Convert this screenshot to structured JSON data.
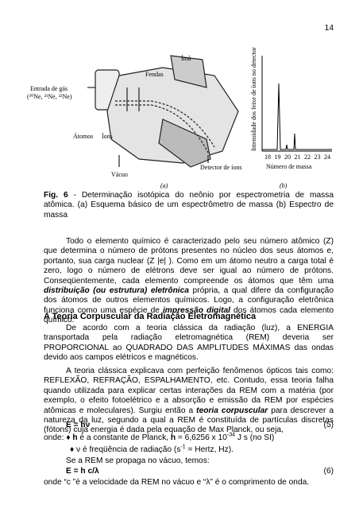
{
  "page_number": "14",
  "figure": {
    "diagram": {
      "gas_inlet": "Entrada de gás",
      "isotopes": "(²⁰Ne, ²¹Ne, ²²Ne)",
      "slits": "Fendas",
      "magnet": "Ímã",
      "atoms": "Átomos",
      "ions": "Íons",
      "detector": "Detector de íons",
      "vacuum": "Vácuo",
      "panel": "(a)"
    },
    "spectrum": {
      "y_label": "Intensidade dos feixe de íons no detector",
      "x_label": "Número de massa",
      "x_ticks": [
        "18",
        "19",
        "20",
        "21",
        "22",
        "23",
        "24"
      ],
      "panel": "(b)"
    },
    "caption": [
      "Fig. 6",
      " - Determinação isotópica do neônio por espectrometria de massa atômica. (a) Esquema básico de um espectrômetro de massa (b) Espectro de massa"
    ]
  },
  "body": {
    "paragraph_1": [
      "Todo o elemento químico é caracterizado pelo seu número atômico (Z) que determina o número de prótons presentes no núcleo dos seus átomos e, portanto, sua carga nuclear (Z |e| ). Como em um átomo neutro a carga total é zero, logo o número de elétrons deve ser igual ao número de prótons. Conseqüentemente, cada elemento compreende os átomos que têm uma ",
      "distribuição (ou estrutura) eletrônica",
      " própria, a qual difere da configuração dos átomos de outros elementos químicos. Logo, a configuração eletrônica funciona como uma espécie de ",
      "impressão digital",
      " dos átomos cada elemento químico."
    ],
    "heading": "A Teoria Corpuscular da Radiação Eletromagnética",
    "paragraph_2": "De acordo com a teoria clássica da radiação (luz), a ENERGIA transportada pela radiação eletromagnética (REM) deveria ser PROPORCIONAL ao QUADRADO DAS AMPLITUDES MÁXIMAS das ondas devido aos campos elétricos e magnéticos.",
    "paragraph_3": [
      "A teoria clássica explicava com perfeição fenômenos ópticos tais como: REFLEXÃO, REFRAÇÃO, ESPALHAMENTO, etc. Contudo, essa teoria falha quando utilizada para explicar certas interações da REM com a matéria (por exemplo, o efeito fotoelétrico e a absorção e emissão da REM por espécies atômicas e moleculares). Surgiu então a ",
      "teoria corpuscular",
      " para descrever a natureza da luz, segundo a qual a REM é constituída de partículas discretas (fótons) cuja energia é dada pela equação de Max Planck, ou seja,"
    ],
    "equation_5": {
      "formula": "E = hν",
      "number": "(5)"
    },
    "where_1": [
      "onde: ♦ ",
      "h",
      " é a constante de Planck, ",
      "h",
      " = 6,6256 x 10",
      "-34",
      " J s (no SI)"
    ],
    "where_2": [
      "♦ ν é freqüência de radiação (s",
      "-1",
      " = Hertz, Hz)."
    ],
    "vacuum_line": "Se a REM se propaga no vácuo, temos:",
    "equation_6": {
      "formula": "E = h c/λ",
      "number": "(6)"
    },
    "where_3": "onde “c ”é a velocidade da REM no vácuo e “λ” é o comprimento de onda."
  }
}
